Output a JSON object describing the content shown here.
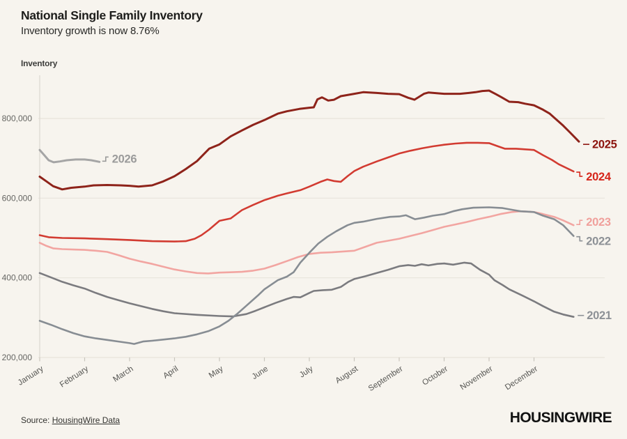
{
  "header": {
    "title": "National Single Family Inventory",
    "subtitle": "Inventory growth is now 8.76%"
  },
  "chart": {
    "y_axis_title": "Inventory"
  },
  "footer": {
    "source_label": "Source:",
    "source_link_text": "HousingWire Data",
    "brand_logo_text": "HOUSINGWIRE"
  },
  "colors": {
    "background": "#f7f4ee",
    "gridline": "#e8e4dc",
    "axis_line": "#dcd8d0",
    "tick": "#c9c5bd",
    "y_tick_text": "#666663",
    "x_tick_text": "#555552",
    "title_text": "#1d1d1b",
    "subtitle_text": "#2a2a28",
    "source_text": "#333330",
    "logo_text": "#121212"
  },
  "chart_data": {
    "type": "line",
    "title": "National Single Family Inventory",
    "subtitle": "Inventory growth is now 8.76%",
    "ylabel": "Inventory",
    "x_unit": "month_fraction (0 = Jan 1, 11 = Dec 1, 12 = Dec 31; weekly data)",
    "categories": [
      "January",
      "February",
      "March",
      "April",
      "May",
      "June",
      "July",
      "August",
      "September",
      "October",
      "November",
      "December"
    ],
    "y_ticks": [
      200000,
      400000,
      600000,
      800000
    ],
    "ylim": [
      190000,
      905000
    ],
    "grid": "horizontal",
    "legend_position": "end-of-line year labels",
    "series": [
      {
        "name": "2021",
        "color": "#7b7b7f",
        "label_color": "#8d9196",
        "points": [
          [
            0,
            412000
          ],
          [
            0.25,
            401000
          ],
          [
            0.5,
            390000
          ],
          [
            0.75,
            381000
          ],
          [
            1,
            373000
          ],
          [
            1.25,
            362000
          ],
          [
            1.5,
            352000
          ],
          [
            1.75,
            344000
          ],
          [
            2,
            336000
          ],
          [
            2.25,
            329000
          ],
          [
            2.5,
            322000
          ],
          [
            2.75,
            316000
          ],
          [
            3,
            311000
          ],
          [
            3.5,
            307000
          ],
          [
            4,
            304000
          ],
          [
            4.3,
            303000
          ],
          [
            4.6,
            309000
          ],
          [
            4.8,
            317000
          ],
          [
            5,
            326000
          ],
          [
            5.25,
            337000
          ],
          [
            5.5,
            347000
          ],
          [
            5.65,
            352000
          ],
          [
            5.8,
            351000
          ],
          [
            6,
            362000
          ],
          [
            6.1,
            367000
          ],
          [
            6.3,
            369000
          ],
          [
            6.5,
            370000
          ],
          [
            6.7,
            377000
          ],
          [
            6.87,
            390000
          ],
          [
            7,
            397000
          ],
          [
            7.25,
            404000
          ],
          [
            7.5,
            412000
          ],
          [
            7.75,
            420000
          ],
          [
            8,
            429000
          ],
          [
            8.2,
            432000
          ],
          [
            8.35,
            430000
          ],
          [
            8.5,
            434000
          ],
          [
            8.65,
            431000
          ],
          [
            8.85,
            435000
          ],
          [
            9,
            436000
          ],
          [
            9.2,
            433000
          ],
          [
            9.45,
            438000
          ],
          [
            9.6,
            436000
          ],
          [
            9.8,
            420000
          ],
          [
            10,
            408000
          ],
          [
            10.12,
            394000
          ],
          [
            10.3,
            382000
          ],
          [
            10.45,
            371000
          ],
          [
            10.75,
            355000
          ],
          [
            11,
            341000
          ],
          [
            11.2,
            329000
          ],
          [
            11.45,
            315000
          ],
          [
            11.65,
            308000
          ],
          [
            11.88,
            302000
          ]
        ]
      },
      {
        "name": "2022",
        "color": "#878d93",
        "label_color": "#8d9196",
        "points": [
          [
            0,
            292000
          ],
          [
            0.25,
            282000
          ],
          [
            0.5,
            271000
          ],
          [
            0.75,
            261000
          ],
          [
            1,
            253000
          ],
          [
            1.25,
            248000
          ],
          [
            1.5,
            244000
          ],
          [
            1.75,
            240000
          ],
          [
            2,
            236000
          ],
          [
            2.1,
            234000
          ],
          [
            2.3,
            240000
          ],
          [
            2.5,
            242000
          ],
          [
            2.75,
            245000
          ],
          [
            3,
            248000
          ],
          [
            3.25,
            252000
          ],
          [
            3.5,
            258000
          ],
          [
            3.75,
            266000
          ],
          [
            4,
            278000
          ],
          [
            4.2,
            292000
          ],
          [
            4.4,
            310000
          ],
          [
            4.6,
            330000
          ],
          [
            4.85,
            355000
          ],
          [
            5,
            371000
          ],
          [
            5.3,
            394000
          ],
          [
            5.5,
            403000
          ],
          [
            5.65,
            414000
          ],
          [
            5.8,
            438000
          ],
          [
            6,
            463000
          ],
          [
            6.2,
            486000
          ],
          [
            6.4,
            503000
          ],
          [
            6.6,
            517000
          ],
          [
            6.85,
            532000
          ],
          [
            7,
            538000
          ],
          [
            7.2,
            541000
          ],
          [
            7.5,
            548000
          ],
          [
            7.8,
            553000
          ],
          [
            8,
            554000
          ],
          [
            8.15,
            557000
          ],
          [
            8.35,
            547000
          ],
          [
            8.55,
            551000
          ],
          [
            8.75,
            556000
          ],
          [
            9,
            560000
          ],
          [
            9.2,
            567000
          ],
          [
            9.4,
            572000
          ],
          [
            9.65,
            576000
          ],
          [
            10,
            577000
          ],
          [
            10.3,
            575000
          ],
          [
            10.55,
            570000
          ],
          [
            10.7,
            567000
          ],
          [
            11,
            565000
          ],
          [
            11.2,
            556000
          ],
          [
            11.45,
            547000
          ],
          [
            11.65,
            532000
          ],
          [
            11.88,
            505000
          ]
        ]
      },
      {
        "name": "2023",
        "color": "#f2a5a1",
        "label_color": "#f0a09c",
        "points": [
          [
            0,
            488000
          ],
          [
            0.15,
            480000
          ],
          [
            0.3,
            474000
          ],
          [
            0.5,
            472000
          ],
          [
            0.75,
            471000
          ],
          [
            1,
            470000
          ],
          [
            1.25,
            468000
          ],
          [
            1.5,
            465000
          ],
          [
            1.75,
            457000
          ],
          [
            2,
            448000
          ],
          [
            2.25,
            441000
          ],
          [
            2.5,
            435000
          ],
          [
            2.75,
            428000
          ],
          [
            3,
            421000
          ],
          [
            3.25,
            416000
          ],
          [
            3.5,
            412000
          ],
          [
            3.75,
            411000
          ],
          [
            4,
            413000
          ],
          [
            4.25,
            414000
          ],
          [
            4.5,
            415000
          ],
          [
            4.75,
            418000
          ],
          [
            5,
            423000
          ],
          [
            5.25,
            432000
          ],
          [
            5.5,
            442000
          ],
          [
            5.75,
            452000
          ],
          [
            6,
            460000
          ],
          [
            6.25,
            463000
          ],
          [
            6.5,
            464000
          ],
          [
            6.75,
            466000
          ],
          [
            7,
            468000
          ],
          [
            7.25,
            478000
          ],
          [
            7.5,
            488000
          ],
          [
            7.75,
            493000
          ],
          [
            8,
            498000
          ],
          [
            8.25,
            505000
          ],
          [
            8.5,
            512000
          ],
          [
            8.75,
            520000
          ],
          [
            9,
            528000
          ],
          [
            9.25,
            534000
          ],
          [
            9.5,
            540000
          ],
          [
            9.75,
            547000
          ],
          [
            10,
            553000
          ],
          [
            10.25,
            560000
          ],
          [
            10.5,
            565000
          ],
          [
            10.7,
            567000
          ],
          [
            11,
            565000
          ],
          [
            11.2,
            560000
          ],
          [
            11.45,
            553000
          ],
          [
            11.65,
            544000
          ],
          [
            11.88,
            532000
          ]
        ]
      },
      {
        "name": "2024",
        "color": "#d23b31",
        "label_color": "#d6261b",
        "points": [
          [
            0,
            507000
          ],
          [
            0.2,
            502000
          ],
          [
            0.5,
            500000
          ],
          [
            1,
            499000
          ],
          [
            1.5,
            497000
          ],
          [
            2,
            495000
          ],
          [
            2.5,
            492000
          ],
          [
            3,
            491000
          ],
          [
            3.25,
            492000
          ],
          [
            3.45,
            498000
          ],
          [
            3.6,
            507000
          ],
          [
            3.77,
            521000
          ],
          [
            4,
            543000
          ],
          [
            4.25,
            549000
          ],
          [
            4.5,
            570000
          ],
          [
            4.75,
            583000
          ],
          [
            5,
            595000
          ],
          [
            5.3,
            606000
          ],
          [
            5.5,
            612000
          ],
          [
            5.8,
            620000
          ],
          [
            6,
            629000
          ],
          [
            6.25,
            641000
          ],
          [
            6.4,
            647000
          ],
          [
            6.55,
            643000
          ],
          [
            6.7,
            641000
          ],
          [
            6.85,
            655000
          ],
          [
            7,
            668000
          ],
          [
            7.2,
            679000
          ],
          [
            7.5,
            692000
          ],
          [
            7.75,
            702000
          ],
          [
            8,
            712000
          ],
          [
            8.25,
            719000
          ],
          [
            8.5,
            725000
          ],
          [
            8.75,
            730000
          ],
          [
            9,
            734000
          ],
          [
            9.25,
            737000
          ],
          [
            9.5,
            739000
          ],
          [
            9.75,
            739000
          ],
          [
            10,
            738000
          ],
          [
            10.2,
            730000
          ],
          [
            10.35,
            724000
          ],
          [
            10.6,
            724000
          ],
          [
            11,
            721000
          ],
          [
            11.2,
            708000
          ],
          [
            11.4,
            696000
          ],
          [
            11.55,
            685000
          ],
          [
            11.88,
            667000
          ]
        ]
      },
      {
        "name": "2025",
        "color": "#8e231a",
        "label_color": "#8c140e",
        "points": [
          [
            0,
            654000
          ],
          [
            0.15,
            642000
          ],
          [
            0.3,
            630000
          ],
          [
            0.5,
            622000
          ],
          [
            0.7,
            626000
          ],
          [
            1,
            629000
          ],
          [
            1.2,
            632000
          ],
          [
            1.5,
            633000
          ],
          [
            1.8,
            632000
          ],
          [
            2,
            631000
          ],
          [
            2.2,
            629000
          ],
          [
            2.5,
            632000
          ],
          [
            2.75,
            642000
          ],
          [
            3,
            655000
          ],
          [
            3.25,
            673000
          ],
          [
            3.5,
            693000
          ],
          [
            3.77,
            724000
          ],
          [
            4,
            735000
          ],
          [
            4.25,
            755000
          ],
          [
            4.5,
            770000
          ],
          [
            4.75,
            784000
          ],
          [
            5,
            796000
          ],
          [
            5.3,
            812000
          ],
          [
            5.5,
            818000
          ],
          [
            5.78,
            824000
          ],
          [
            6,
            827000
          ],
          [
            6.1,
            828000
          ],
          [
            6.18,
            848000
          ],
          [
            6.28,
            853000
          ],
          [
            6.42,
            845000
          ],
          [
            6.55,
            847000
          ],
          [
            6.7,
            856000
          ],
          [
            7,
            862000
          ],
          [
            7.2,
            866000
          ],
          [
            7.5,
            864000
          ],
          [
            7.75,
            862000
          ],
          [
            8,
            861000
          ],
          [
            8.2,
            852000
          ],
          [
            8.34,
            847000
          ],
          [
            8.55,
            862000
          ],
          [
            8.65,
            865000
          ],
          [
            8.88,
            863000
          ],
          [
            9,
            862000
          ],
          [
            9.35,
            862000
          ],
          [
            9.55,
            864000
          ],
          [
            9.7,
            866000
          ],
          [
            9.85,
            869000
          ],
          [
            10,
            870000
          ],
          [
            10.15,
            861000
          ],
          [
            10.28,
            853000
          ],
          [
            10.45,
            842000
          ],
          [
            10.65,
            841000
          ],
          [
            10.8,
            837000
          ],
          [
            11,
            833000
          ],
          [
            11.2,
            822000
          ],
          [
            11.35,
            812000
          ],
          [
            11.5,
            797000
          ],
          [
            11.65,
            782000
          ],
          [
            11.8,
            765000
          ],
          [
            12,
            742000
          ]
        ]
      },
      {
        "name": "2026",
        "color": "#a5a5a5",
        "label_color": "#9b9b9b",
        "points": [
          [
            0,
            721000
          ],
          [
            0.1,
            708000
          ],
          [
            0.2,
            695000
          ],
          [
            0.31,
            690000
          ],
          [
            0.45,
            692000
          ],
          [
            0.6,
            695000
          ],
          [
            0.8,
            697000
          ],
          [
            1,
            697000
          ],
          [
            1.15,
            695000
          ],
          [
            1.33,
            691000
          ]
        ]
      }
    ]
  }
}
